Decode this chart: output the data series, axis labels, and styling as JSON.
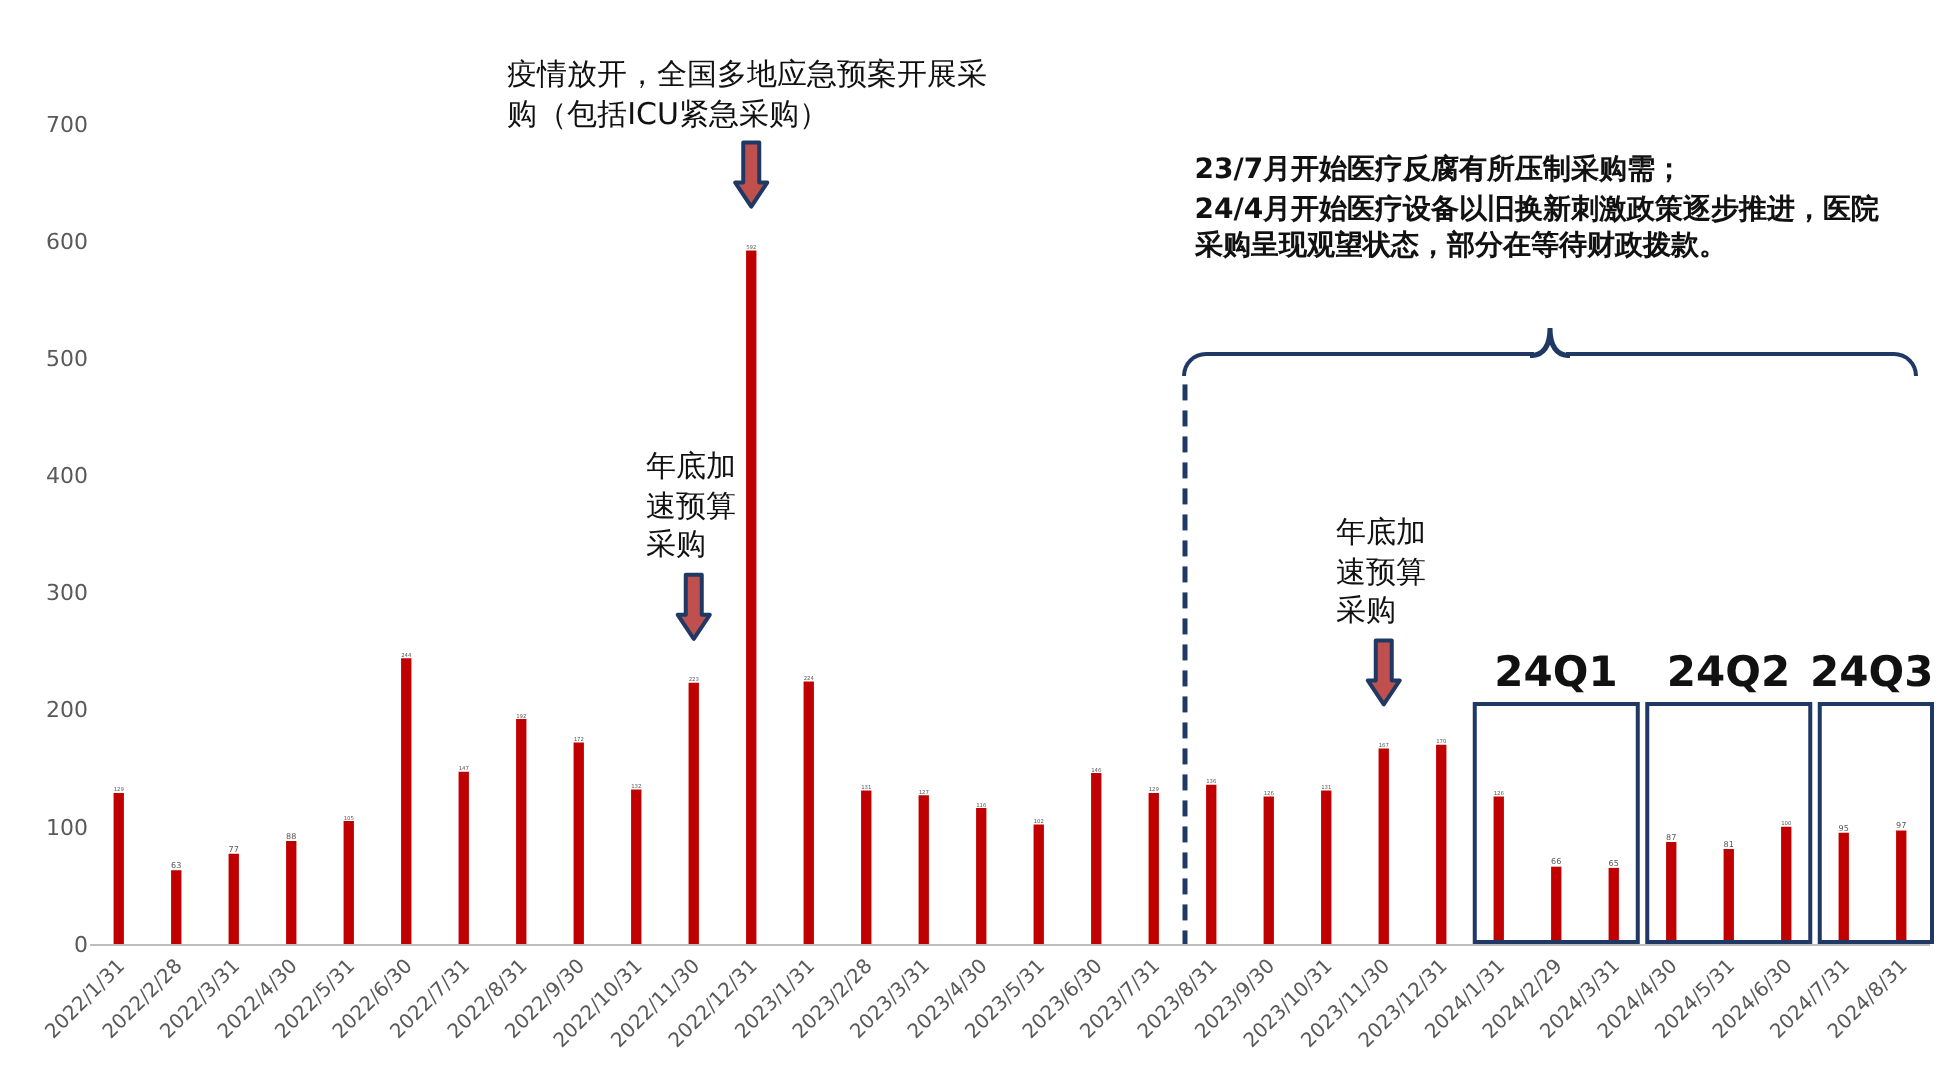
{
  "chart_data": {
    "type": "bar",
    "categories": [
      "2022/1/31",
      "2022/2/28",
      "2022/3/31",
      "2022/4/30",
      "2022/5/31",
      "2022/6/30",
      "2022/7/31",
      "2022/8/31",
      "2022/9/30",
      "2022/10/31",
      "2022/11/30",
      "2022/12/31",
      "2023/1/31",
      "2023/2/28",
      "2023/3/31",
      "2023/4/30",
      "2023/5/31",
      "2023/6/30",
      "2023/7/31",
      "2023/8/31",
      "2023/9/30",
      "2023/10/31",
      "2023/11/30",
      "2023/12/31",
      "2024/1/31",
      "2024/2/29",
      "2024/3/31",
      "2024/4/30",
      "2024/5/31",
      "2024/6/30",
      "2024/7/31",
      "2024/8/31"
    ],
    "values": [
      129,
      63,
      77,
      88,
      105,
      244,
      147,
      192,
      172,
      132,
      223,
      592,
      224,
      131,
      127,
      116,
      102,
      146,
      129,
      136,
      126,
      131,
      167,
      170,
      126,
      66,
      65,
      87,
      81,
      100,
      95,
      97
    ],
    "color": "#c00000",
    "ylim": [
      0,
      700
    ],
    "yticks": [
      0,
      100,
      200,
      300,
      400,
      500,
      600,
      700
    ],
    "grid": false,
    "data_labels": true,
    "annotations": [
      "疫情放开，全国多地应急预案开展采购（包括ICU紧急采购）",
      "年底加速预算采购",
      "年底加速预算采购",
      "24Q1",
      "24Q2",
      "24Q3",
      "23/7月开始医疗反腐有所压制采购需；",
      "24/4月开始医疗设备以旧换新刺激政策逐步推进，医院采购呈现观望状态，部分在等待财政拨款。"
    ]
  }
}
